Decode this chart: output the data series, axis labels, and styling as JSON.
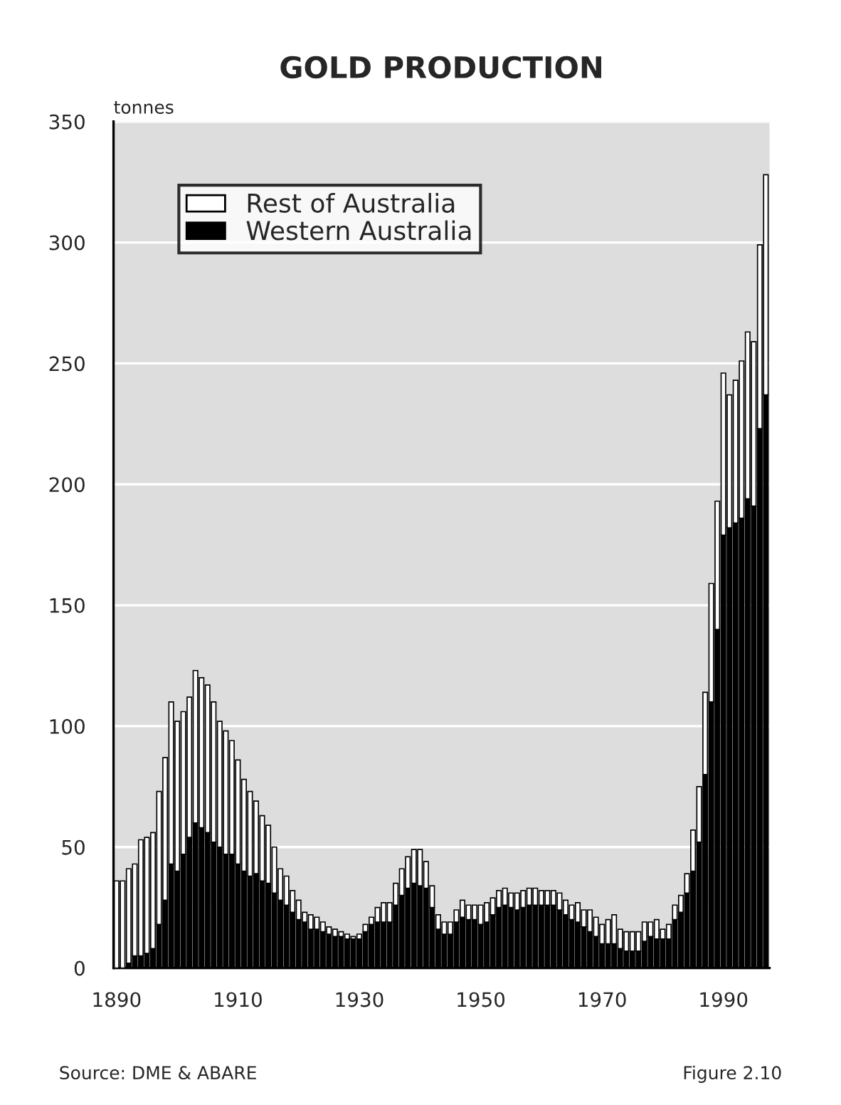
{
  "chart_data": {
    "type": "bar",
    "title": "GOLD PRODUCTION",
    "ylabel": "tonnes",
    "stacked": true,
    "x": [
      1890,
      1891,
      1892,
      1893,
      1894,
      1895,
      1896,
      1897,
      1898,
      1899,
      1900,
      1901,
      1902,
      1903,
      1904,
      1905,
      1906,
      1907,
      1908,
      1909,
      1910,
      1911,
      1912,
      1913,
      1914,
      1915,
      1916,
      1917,
      1918,
      1919,
      1920,
      1921,
      1922,
      1923,
      1924,
      1925,
      1926,
      1927,
      1928,
      1929,
      1930,
      1931,
      1932,
      1933,
      1934,
      1935,
      1936,
      1937,
      1938,
      1939,
      1940,
      1941,
      1942,
      1943,
      1944,
      1945,
      1946,
      1947,
      1948,
      1949,
      1950,
      1951,
      1952,
      1953,
      1954,
      1955,
      1956,
      1957,
      1958,
      1959,
      1960,
      1961,
      1962,
      1963,
      1964,
      1965,
      1966,
      1967,
      1968,
      1969,
      1970,
      1971,
      1972,
      1973,
      1974,
      1975,
      1976,
      1977,
      1978,
      1979,
      1980,
      1981,
      1982,
      1983,
      1984,
      1985,
      1986,
      1987,
      1988,
      1989,
      1990,
      1991,
      1992,
      1993,
      1994,
      1995,
      1996,
      1997
    ],
    "series": [
      {
        "name": "Western Australia",
        "color": "#000000",
        "values": [
          null,
          null,
          2,
          5,
          5,
          6,
          8,
          18,
          28,
          43,
          40,
          47,
          54,
          60,
          58,
          56,
          52,
          50,
          47,
          47,
          43,
          40,
          38,
          39,
          36,
          35,
          31,
          28,
          26,
          23,
          20,
          19,
          16,
          16,
          15,
          14,
          13,
          13,
          12,
          12,
          12,
          15,
          18,
          19,
          19,
          19,
          26,
          30,
          33,
          35,
          34,
          33,
          25,
          16,
          14,
          14,
          19,
          21,
          20,
          20,
          18,
          19,
          22,
          25,
          26,
          25,
          24,
          25,
          26,
          26,
          26,
          26,
          26,
          24,
          22,
          20,
          19,
          17,
          15,
          13,
          10,
          10,
          10,
          8,
          7,
          7,
          7,
          11,
          13,
          12,
          12,
          12,
          20,
          23,
          31,
          40,
          52,
          80,
          110,
          140,
          179,
          182,
          184,
          186,
          194,
          191,
          223,
          237
        ]
      },
      {
        "name": "Rest of Australia",
        "color": "#ffffff",
        "values": [
          36,
          36,
          39,
          38,
          48,
          48,
          48,
          55,
          59,
          67,
          62,
          59,
          58,
          63,
          62,
          61,
          58,
          52,
          51,
          47,
          43,
          38,
          35,
          30,
          27,
          24,
          19,
          13,
          12,
          9,
          8,
          4,
          6,
          5,
          4,
          3,
          3,
          2,
          2,
          1,
          2,
          3,
          3,
          6,
          8,
          8,
          9,
          11,
          13,
          14,
          15,
          11,
          9,
          6,
          5,
          5,
          5,
          7,
          6,
          6,
          8,
          8,
          7,
          7,
          7,
          6,
          7,
          7,
          7,
          7,
          6,
          6,
          6,
          7,
          6,
          6,
          8,
          7,
          9,
          8,
          8,
          10,
          12,
          8,
          8,
          8,
          8,
          8,
          6,
          8,
          4,
          6,
          6,
          7,
          8,
          17,
          23,
          34,
          49,
          53,
          67,
          55,
          59,
          65,
          69,
          68,
          76,
          91
        ]
      }
    ],
    "xlim": [
      1889.5,
      1997.6
    ],
    "xticks": [
      1890,
      1910,
      1930,
      1950,
      1970,
      1990
    ],
    "ylim": [
      0,
      350
    ],
    "yticks": [
      0,
      50,
      100,
      150,
      200,
      250,
      300,
      350
    ],
    "grid": "y",
    "legend": "top left",
    "annotations": [
      "Source: DME & ABARE",
      "Figure 2.10"
    ]
  }
}
